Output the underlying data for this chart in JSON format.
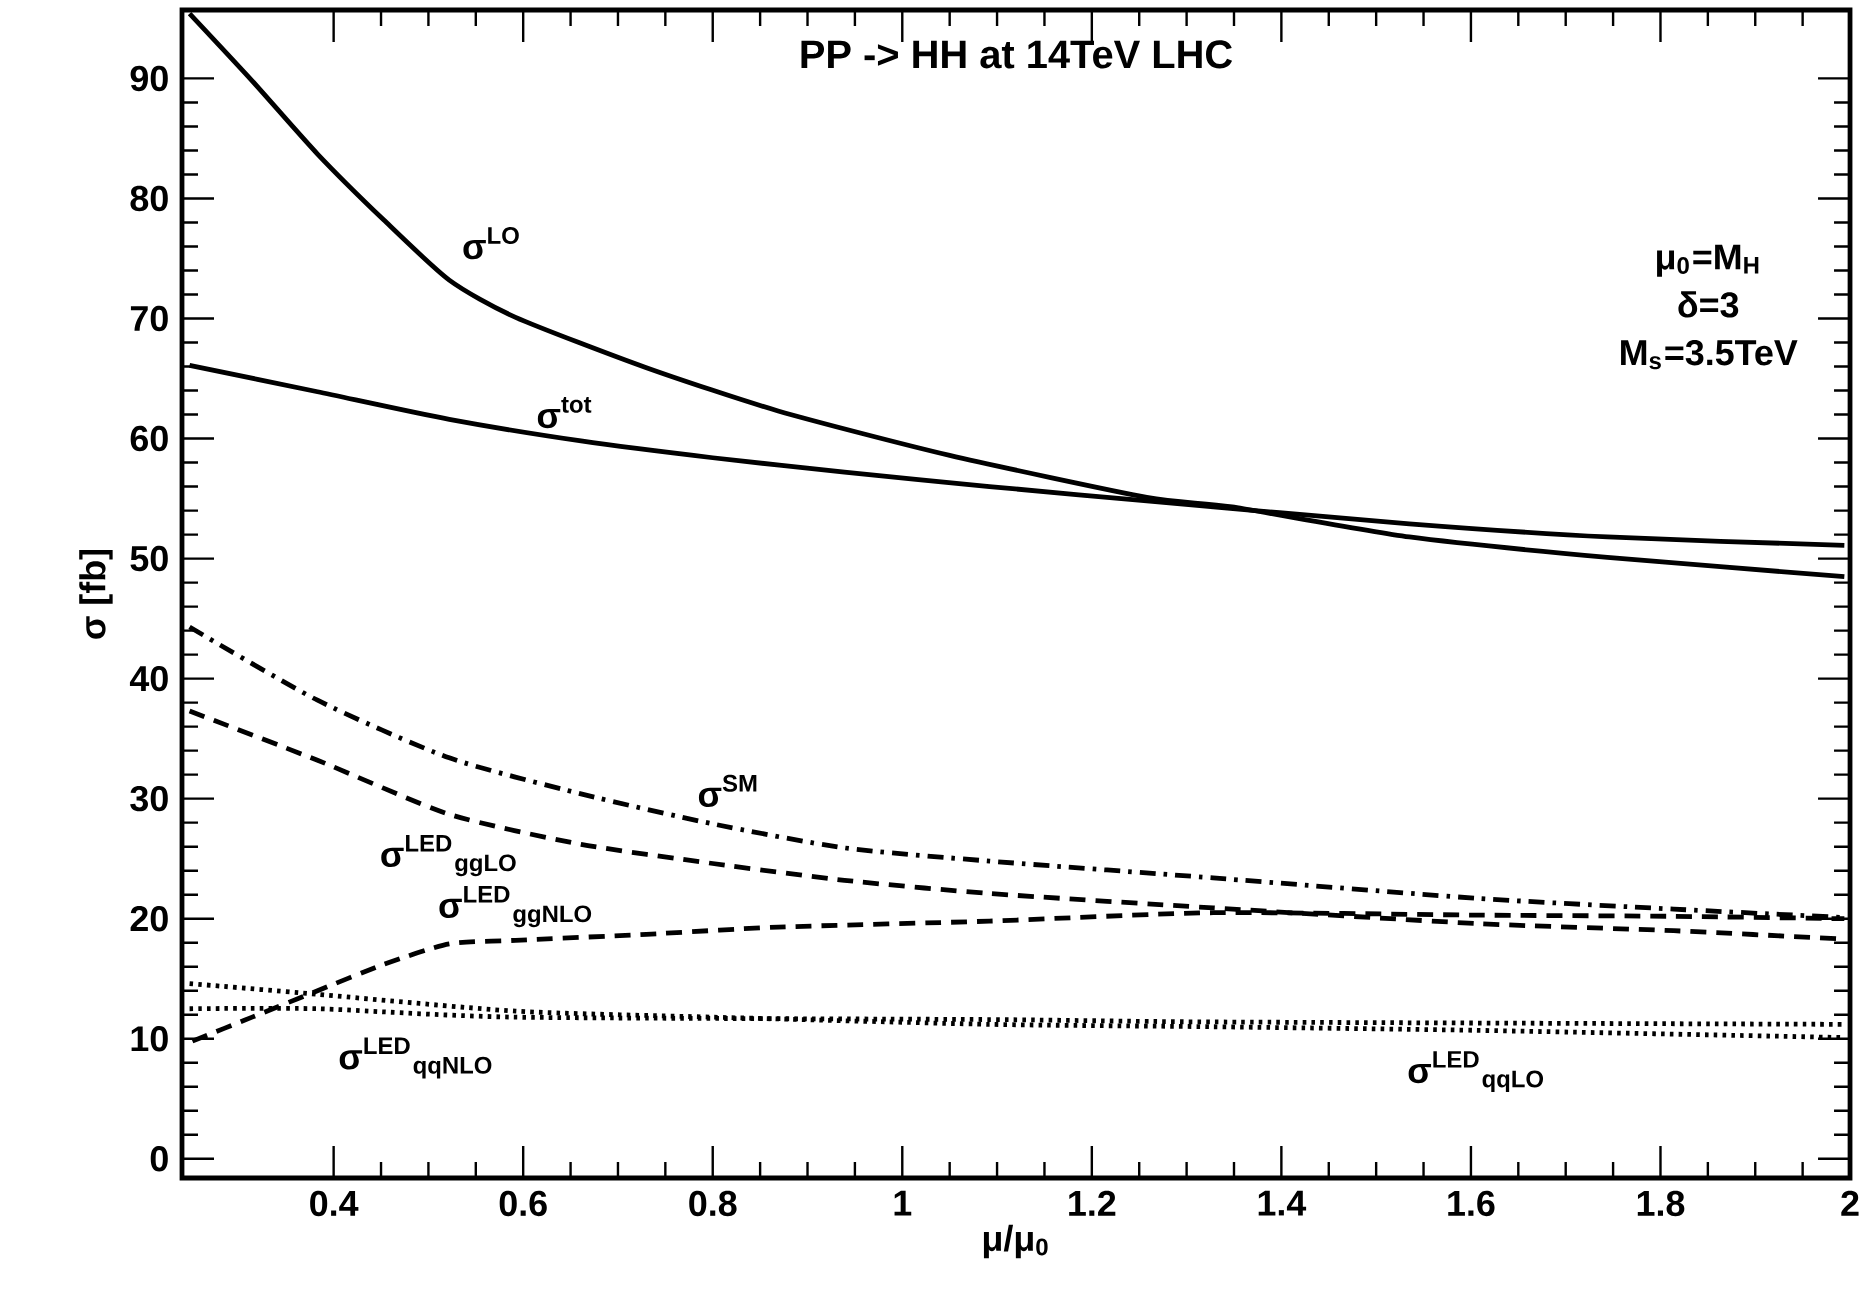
{
  "chart_data": {
    "type": "line",
    "title": "PP -> HH at 14TeV LHC",
    "xlabel": "μ/μ$_{0}$",
    "ylabel": "σ [fb]",
    "xlim": [
      0.24,
      2.0
    ],
    "ylim": [
      -1.6,
      95.7
    ],
    "xticks": [
      0.4,
      0.6,
      0.8,
      1,
      1.2,
      1.4,
      1.6,
      1.8,
      2
    ],
    "yticks": [
      0,
      10,
      20,
      30,
      40,
      50,
      60,
      70,
      80,
      90
    ],
    "series": [
      {
        "name": "σ$^{LO}$",
        "color": "#000000",
        "line_style": "solid",
        "x": [
          0.248,
          0.314,
          0.383,
          0.453,
          0.522,
          0.592,
          0.73,
          0.869,
          1.05,
          1.258,
          1.348,
          1.535,
          1.744,
          1.994
        ],
        "values": [
          95.4,
          89.8,
          83.7,
          78.2,
          73.2,
          70.1,
          65.9,
          62.3,
          58.6,
          55.1,
          54.3,
          51.8,
          50.1,
          48.5
        ]
      },
      {
        "name": "σ$^{tot}$",
        "color": "#000000",
        "line_style": "solid",
        "x": [
          0.248,
          0.383,
          0.522,
          0.661,
          0.8,
          0.939,
          1.092,
          1.258,
          1.535,
          1.744,
          1.994
        ],
        "values": [
          66.1,
          63.9,
          61.6,
          59.8,
          58.4,
          57.2,
          56.0,
          54.8,
          52.9,
          51.8,
          51.1
        ]
      },
      {
        "name": "σ$^{SM}$",
        "color": "#000000",
        "line_style": "dashdot",
        "x": [
          0.248,
          0.383,
          0.522,
          0.661,
          0.8,
          0.939,
          1.092,
          1.328,
          1.606,
          1.814,
          1.994
        ],
        "values": [
          44.3,
          38.2,
          33.4,
          30.4,
          27.9,
          25.9,
          24.8,
          23.4,
          21.7,
          20.8,
          20.1
        ]
      },
      {
        "name": "σ$^{LED}$$_{ggLO}$",
        "color": "#000000",
        "line_style": "dashed",
        "x": [
          0.248,
          0.383,
          0.522,
          0.661,
          0.8,
          0.939,
          1.092,
          1.328,
          1.606,
          1.814,
          1.994
        ],
        "values": [
          37.3,
          33.2,
          28.7,
          26.2,
          24.6,
          23.2,
          22.1,
          20.9,
          19.6,
          19.0,
          18.3
        ]
      },
      {
        "name": "σ$^{LED}$$_{ggNLO}$",
        "color": "#000000",
        "line_style": "dashed",
        "x": [
          0.251,
          0.314,
          0.383,
          0.453,
          0.522,
          0.592,
          0.73,
          0.869,
          1.092,
          1.328,
          1.606,
          1.814,
          1.994
        ],
        "values": [
          9.8,
          11.8,
          14.0,
          16.2,
          17.9,
          18.2,
          18.7,
          19.3,
          19.8,
          20.5,
          20.3,
          20.2,
          20.0
        ]
      },
      {
        "name": "σ$^{LED}$$_{qqLO}$",
        "color": "#000000",
        "line_style": "dotted",
        "x": [
          0.248,
          0.383,
          0.592,
          0.8,
          1.092,
          1.328,
          1.606,
          1.994
        ],
        "values": [
          14.6,
          13.7,
          12.3,
          11.8,
          11.2,
          11.0,
          10.7,
          10.1
        ]
      },
      {
        "name": "σ$^{LED}$$_{qqNLO}$",
        "color": "#000000",
        "line_style": "dotted",
        "x": [
          0.248,
          0.383,
          0.592,
          1.092,
          1.328,
          1.994
        ],
        "values": [
          12.5,
          12.5,
          11.8,
          11.6,
          11.4,
          11.2
        ]
      }
    ],
    "annotations": [
      "μ$_{0}$=M$_{H}$",
      "δ=3",
      "M$_{s}$=3.5TeV"
    ]
  }
}
